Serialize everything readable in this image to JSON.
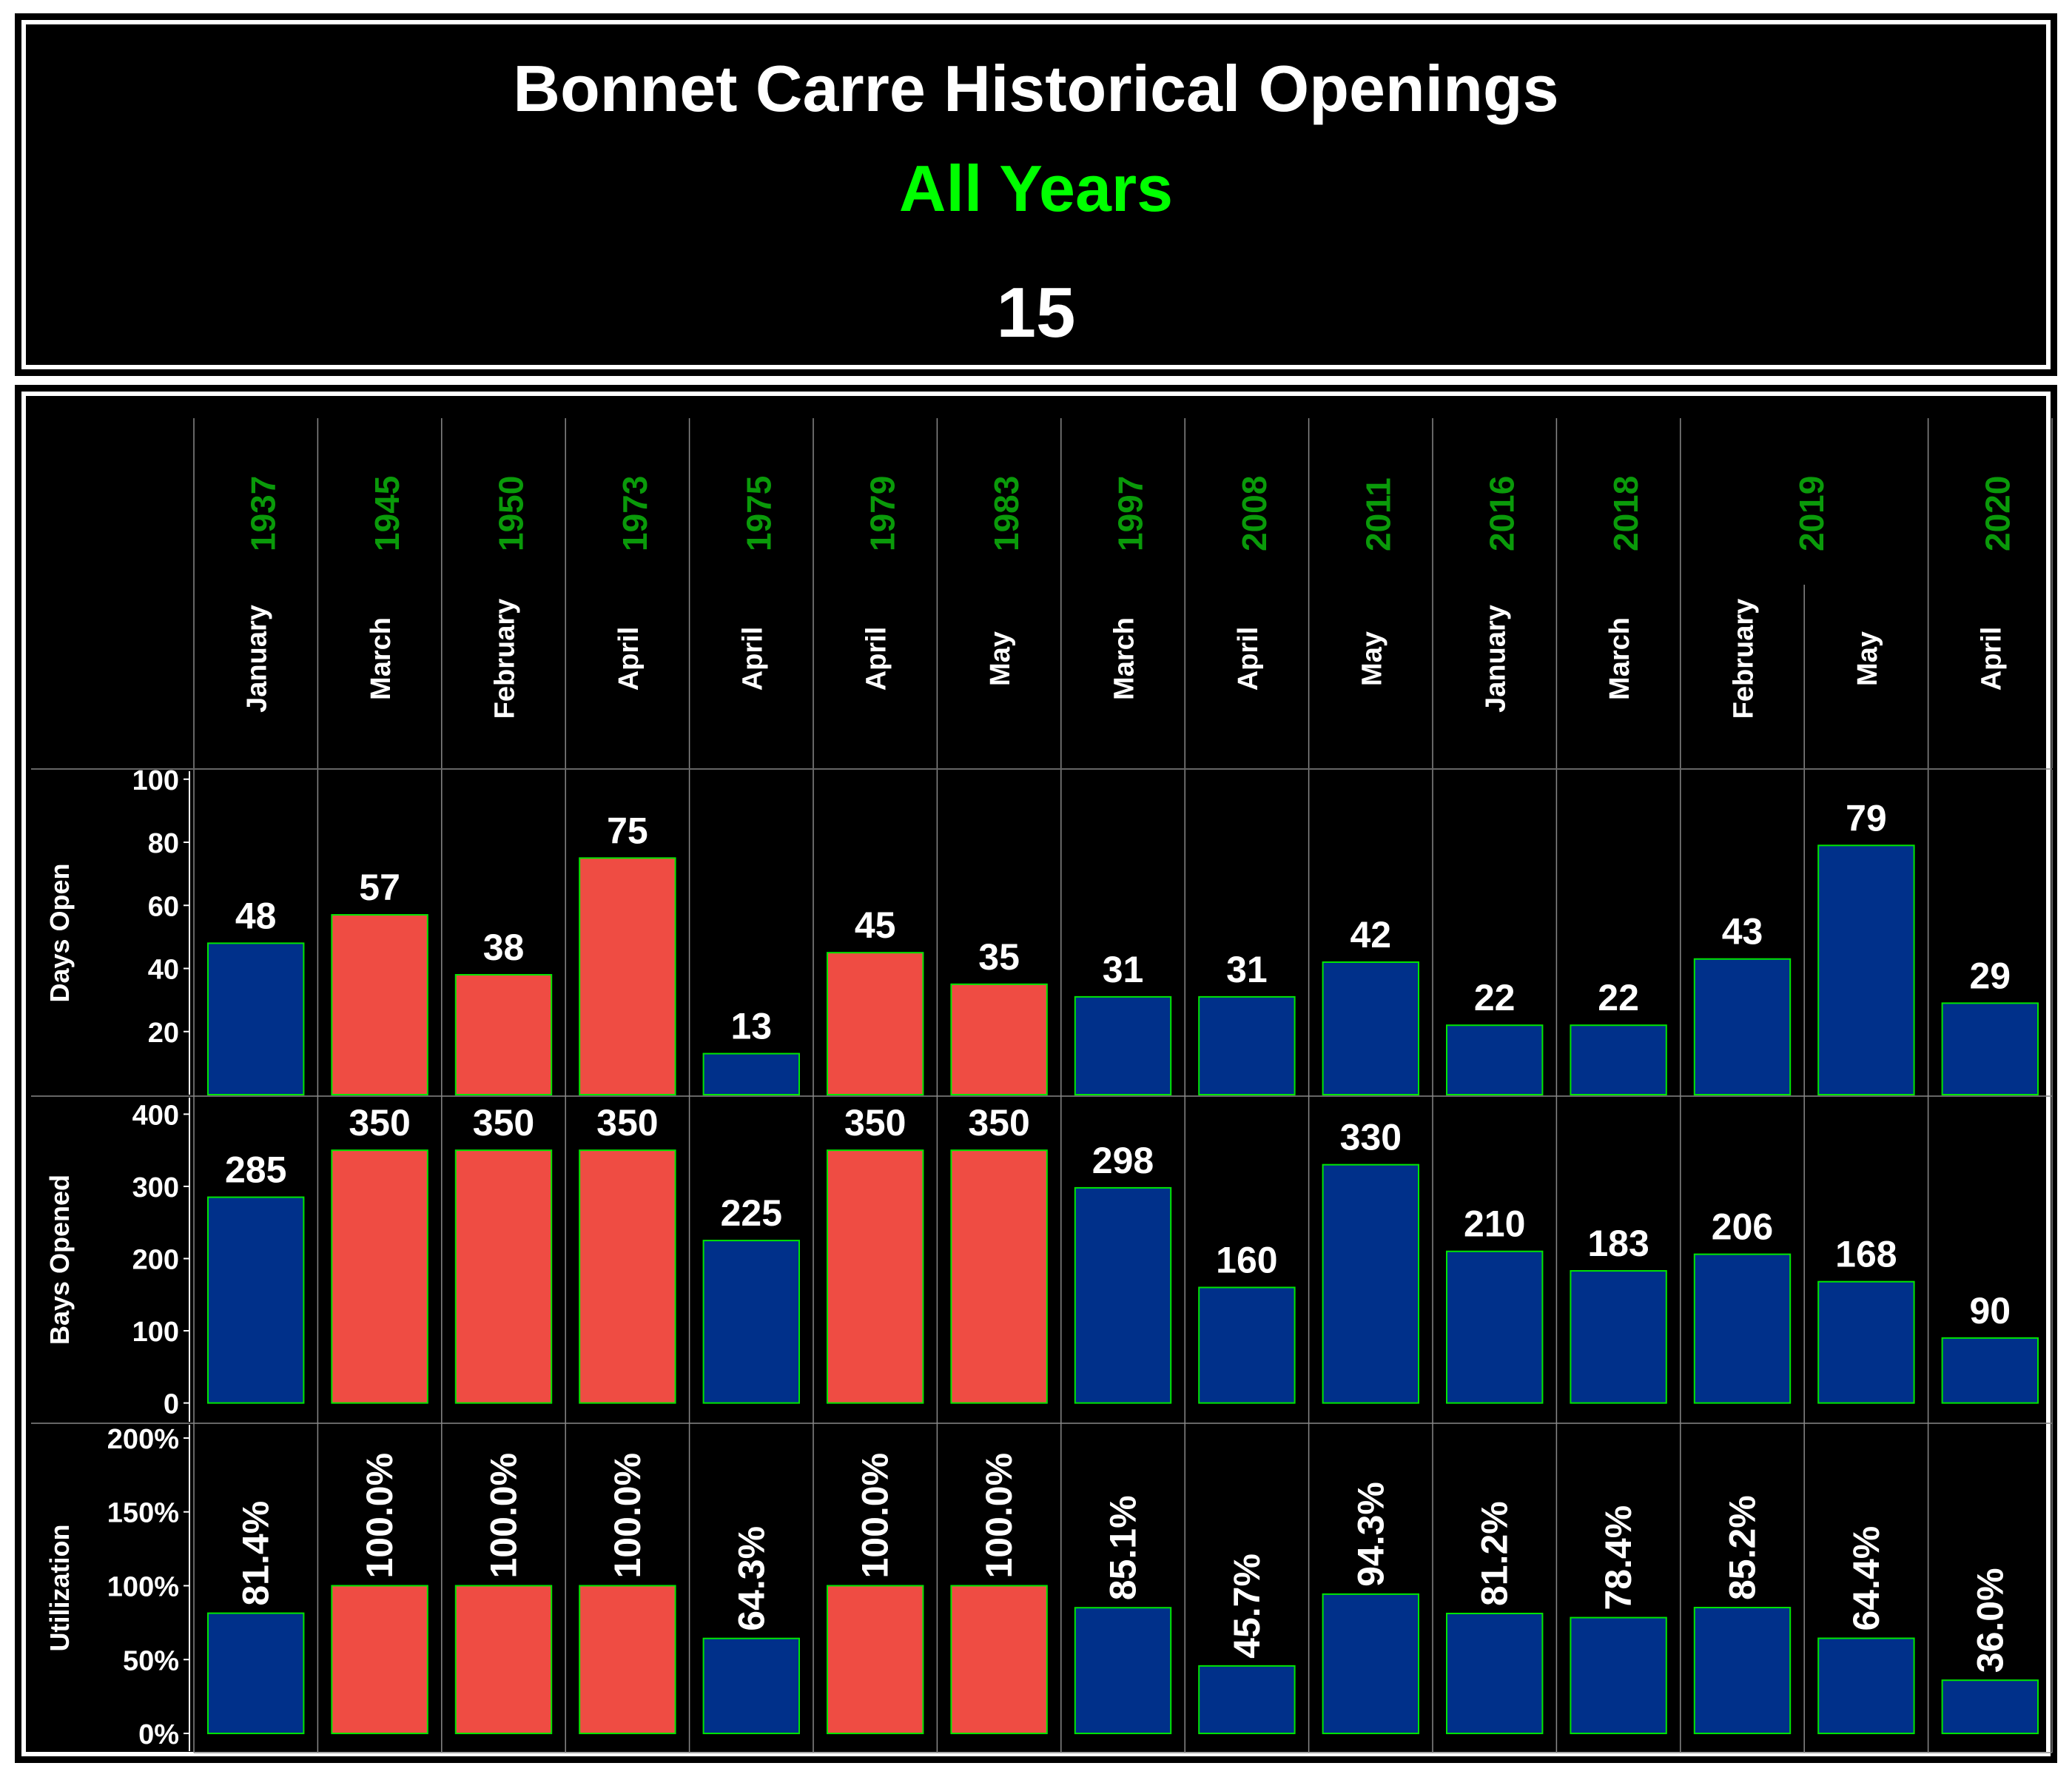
{
  "header": {
    "title": "Bonnet Carre Historical Openings",
    "subtitle": "All Years",
    "count": "15"
  },
  "colors": {
    "background": "#000000",
    "frame": "#ffffff",
    "year_text": "#0a9a0a",
    "subtitle": "#00ff00",
    "bar_blue": "#00308a",
    "bar_red": "#ef4c43",
    "bar_stroke": "#00e600",
    "grid": "#888888"
  },
  "chart_data": {
    "type": "bar",
    "year_groups": [
      {
        "year": "1937",
        "months": 1
      },
      {
        "year": "1945",
        "months": 1
      },
      {
        "year": "1950",
        "months": 1
      },
      {
        "year": "1973",
        "months": 1
      },
      {
        "year": "1975",
        "months": 1
      },
      {
        "year": "1979",
        "months": 1
      },
      {
        "year": "1983",
        "months": 1
      },
      {
        "year": "1997",
        "months": 1
      },
      {
        "year": "2008",
        "months": 1
      },
      {
        "year": "2011",
        "months": 1
      },
      {
        "year": "2016",
        "months": 1
      },
      {
        "year": "2018",
        "months": 1
      },
      {
        "year": "2019",
        "months": 2
      },
      {
        "year": "2020",
        "months": 1
      }
    ],
    "categories": [
      "January",
      "March",
      "February",
      "April",
      "April",
      "April",
      "May",
      "March",
      "April",
      "May",
      "January",
      "March",
      "February",
      "May",
      "April"
    ],
    "bar_colors": [
      "blue",
      "red",
      "red",
      "red",
      "blue",
      "red",
      "red",
      "blue",
      "blue",
      "blue",
      "blue",
      "blue",
      "blue",
      "blue",
      "blue"
    ],
    "panels": [
      {
        "ylabel": "Days Open",
        "ylim": [
          0,
          103
        ],
        "ticks": [
          20,
          40,
          60,
          80,
          100
        ],
        "tick_labels": [
          "20",
          "40",
          "60",
          "80",
          "100"
        ],
        "values": [
          48,
          57,
          38,
          75,
          13,
          45,
          35,
          31,
          31,
          42,
          22,
          22,
          43,
          79,
          29
        ],
        "labels": [
          "48",
          "57",
          "38",
          "75",
          "13",
          "45",
          "35",
          "31",
          "31",
          "42",
          "22",
          "22",
          "43",
          "79",
          "29"
        ],
        "label_orientation": "horizontal"
      },
      {
        "ylabel": "Bays Opened",
        "ylim": [
          -25,
          425
        ],
        "ticks": [
          0,
          100,
          200,
          300,
          400
        ],
        "tick_labels": [
          "0",
          "100",
          "200",
          "300",
          "400"
        ],
        "values": [
          285,
          350,
          350,
          350,
          225,
          350,
          350,
          298,
          160,
          330,
          210,
          183,
          206,
          168,
          90
        ],
        "labels": [
          "285",
          "350",
          "350",
          "350",
          "225",
          "350",
          "350",
          "298",
          "160",
          "330",
          "210",
          "183",
          "206",
          "168",
          "90"
        ],
        "label_orientation": "horizontal"
      },
      {
        "ylabel": "Utilization",
        "ylim": [
          -0.12,
          2.1
        ],
        "ticks": [
          0,
          0.5,
          1.0,
          1.5,
          2.0
        ],
        "tick_labels": [
          "0%",
          "50%",
          "100%",
          "150%",
          "200%"
        ],
        "values": [
          0.814,
          1.0,
          1.0,
          1.0,
          0.643,
          1.0,
          1.0,
          0.851,
          0.457,
          0.943,
          0.812,
          0.784,
          0.852,
          0.644,
          0.36
        ],
        "labels": [
          "81.4%",
          "100.0%",
          "100.0%",
          "100.0%",
          "64.3%",
          "100.0%",
          "100.0%",
          "85.1%",
          "45.7%",
          "94.3%",
          "81.2%",
          "78.4%",
          "85.2%",
          "64.4%",
          "36.0%"
        ],
        "label_orientation": "vertical"
      }
    ]
  }
}
